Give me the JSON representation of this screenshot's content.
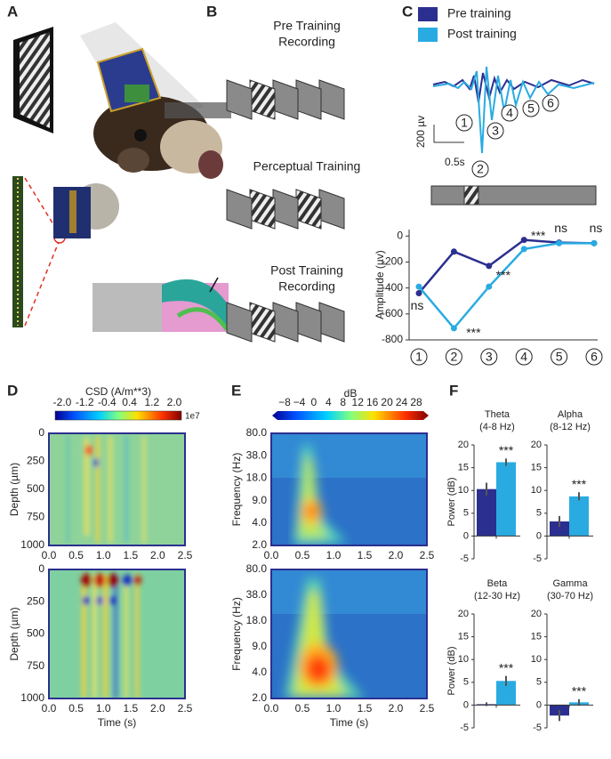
{
  "panel_labels": [
    "A",
    "B",
    "C",
    "D",
    "E",
    "F"
  ],
  "panel_b": {
    "steps": [
      [
        "Pre Training",
        "Recording"
      ],
      [
        "Perceptual Training"
      ],
      [
        "Post Training",
        "Recording"
      ]
    ]
  },
  "panel_c": {
    "scale_amplitude": "200 µv",
    "scale_time": "0.5s"
  },
  "panel_d": {
    "colorbar_title": "CSD (A/m**3)",
    "colorbar_ticks": [
      "-2.0",
      "-1.2",
      "-0.4",
      "0.4",
      "1.2",
      "2.0"
    ],
    "colorbar_exponent": "1e7",
    "y_label": "Depth (µm)",
    "yticks": [
      "0",
      "250",
      "500",
      "750",
      "1000"
    ],
    "x_label": "Time (s)",
    "xticks": [
      "0.0",
      "0.5",
      "1.0",
      "1.5",
      "2.0",
      "2.5"
    ]
  },
  "panel_e": {
    "colorbar_title": "dB",
    "colorbar_ticks": [
      "−8",
      "−4",
      "0",
      "4",
      "8",
      "12",
      "16",
      "20",
      "24",
      "28"
    ],
    "y_label": "Frequency (Hz)",
    "yticks": [
      "80.0",
      "38.0",
      "18.0",
      "9.0",
      "4.0",
      "2.0"
    ],
    "x_label": "Time (s)",
    "xticks": [
      "0.0",
      "0.5",
      "1.0",
      "1.5",
      "2.0",
      "2.5"
    ]
  },
  "panel_f": {
    "y_label": "Power (dB)"
  },
  "chart_data": [
    {
      "type": "line",
      "y_label": "Amplitude (µv)",
      "categories": [
        "1",
        "2",
        "3",
        "4",
        "5",
        "6"
      ],
      "series": [
        {
          "name": "Pre training",
          "color": "#2b2f8f",
          "values": [
            -440,
            -120,
            -230,
            -30,
            -50,
            -55
          ]
        },
        {
          "name": "Post training",
          "color": "#29abe2",
          "values": [
            -390,
            -710,
            -390,
            -100,
            -55,
            -55
          ]
        }
      ],
      "annotations": [
        "ns",
        "***",
        "***",
        "***",
        "ns",
        "ns"
      ],
      "ylim": [
        -800,
        50
      ],
      "yticks": [
        -800,
        -600,
        -400,
        -200,
        0
      ]
    },
    {
      "type": "bar",
      "title": [
        "Theta",
        "(4-8 Hz)"
      ],
      "values": [
        10.3,
        16.2
      ],
      "errors": [
        1.4,
        0.8
      ],
      "colors": [
        "#2b2f8f",
        "#29abe2"
      ],
      "annotation": "***",
      "ylim": [
        -5,
        20
      ],
      "yticks": [
        -5,
        0,
        5,
        10,
        15,
        20
      ]
    },
    {
      "type": "bar",
      "title": [
        "Alpha",
        "(8-12 Hz)"
      ],
      "values": [
        3.2,
        8.7
      ],
      "errors": [
        1.2,
        0.9
      ],
      "colors": [
        "#2b2f8f",
        "#29abe2"
      ],
      "annotation": "***",
      "ylim": [
        -5,
        20
      ],
      "yticks": [
        -5,
        0,
        5,
        10,
        15,
        20
      ]
    },
    {
      "type": "bar",
      "title": [
        "Beta",
        "(12-30 Hz)"
      ],
      "values": [
        0.2,
        5.3
      ],
      "errors": [
        0.4,
        1.1
      ],
      "colors": [
        "#2b2f8f",
        "#29abe2"
      ],
      "annotation": "***",
      "ylim": [
        -5,
        20
      ],
      "yticks": [
        -5,
        0,
        5,
        10,
        15,
        20
      ]
    },
    {
      "type": "bar",
      "title": [
        "Gamma",
        "(30-70 Hz)"
      ],
      "values": [
        -2.3,
        0.6
      ],
      "errors": [
        1.2,
        0.7
      ],
      "colors": [
        "#2b2f8f",
        "#29abe2"
      ],
      "annotation": "***",
      "ylim": [
        -5,
        20
      ],
      "yticks": [
        -5,
        0,
        5,
        10,
        15,
        20
      ]
    }
  ]
}
